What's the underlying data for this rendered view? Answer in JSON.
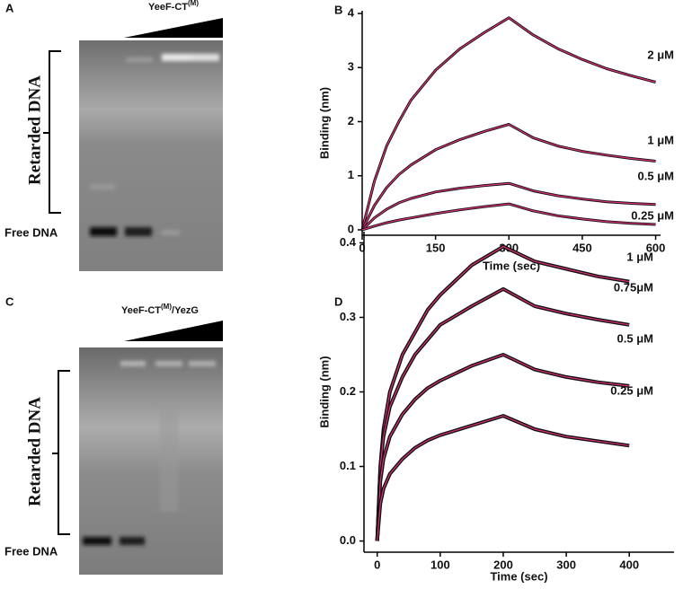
{
  "panels": {
    "A": {
      "letter": "A",
      "wedge_label": {
        "text": "YeeF-CT",
        "superscript": "(M)"
      },
      "bracket_label": "Retarded DNA",
      "band_label": "Free DNA"
    },
    "C": {
      "letter": "C",
      "wedge_label": {
        "text": "YeeF-CT",
        "superscript": "(M)",
        "suffix": "/YezG"
      },
      "bracket_label": "Retarded DNA",
      "band_label": "Free DNA"
    },
    "B": {
      "letter": "B"
    },
    "D": {
      "letter": "D"
    }
  },
  "chart_data": [
    {
      "type": "line",
      "x_label": "Time (sec)",
      "y_label": "Binding (nm)",
      "x": [
        0,
        25,
        50,
        75,
        100,
        150,
        200,
        250,
        300,
        350,
        400,
        450,
        500,
        550,
        600
      ],
      "series": [
        {
          "name": "2 μM",
          "color": "#111111",
          "values": [
            0,
            0.9,
            1.55,
            2.0,
            2.4,
            2.95,
            3.35,
            3.65,
            3.92,
            3.6,
            3.35,
            3.15,
            2.98,
            2.85,
            2.73
          ]
        },
        {
          "name": "1 μM",
          "color": "#111111",
          "values": [
            0,
            0.45,
            0.78,
            1.02,
            1.2,
            1.48,
            1.67,
            1.82,
            1.95,
            1.7,
            1.55,
            1.45,
            1.38,
            1.32,
            1.27
          ]
        },
        {
          "name": "0.5 μM",
          "color": "#111111",
          "values": [
            0,
            0.22,
            0.38,
            0.5,
            0.58,
            0.7,
            0.77,
            0.82,
            0.86,
            0.72,
            0.63,
            0.57,
            0.52,
            0.49,
            0.47
          ]
        },
        {
          "name": "0.25 μM",
          "color": "#111111",
          "values": [
            0,
            0.07,
            0.13,
            0.18,
            0.22,
            0.3,
            0.37,
            0.43,
            0.48,
            0.35,
            0.26,
            0.2,
            0.15,
            0.12,
            0.1
          ]
        }
      ],
      "fit_color": "#e0307a",
      "xlim": [
        0,
        610
      ],
      "ylim": [
        -0.1,
        4.05
      ],
      "xticks": [
        0,
        150,
        300,
        450,
        600
      ],
      "yticks": [
        0,
        1,
        2,
        3,
        4
      ]
    },
    {
      "type": "line",
      "x_label": "Time (sec)",
      "y_label": "Binding (nm)",
      "x": [
        0,
        5,
        10,
        20,
        40,
        60,
        80,
        100,
        150,
        200,
        250,
        300,
        350,
        400
      ],
      "series": [
        {
          "name": "1 μM",
          "color": "#111111",
          "values": [
            0,
            0.1,
            0.15,
            0.2,
            0.25,
            0.28,
            0.31,
            0.33,
            0.37,
            0.395,
            0.375,
            0.365,
            0.355,
            0.348
          ]
        },
        {
          "name": "0.75μM",
          "color": "#111111",
          "values": [
            0,
            0.1,
            0.14,
            0.18,
            0.22,
            0.25,
            0.27,
            0.29,
            0.315,
            0.338,
            0.315,
            0.305,
            0.297,
            0.29
          ]
        },
        {
          "name": "0.5 μM",
          "color": "#111111",
          "values": [
            0,
            0.08,
            0.11,
            0.14,
            0.17,
            0.19,
            0.205,
            0.215,
            0.235,
            0.25,
            0.23,
            0.22,
            0.213,
            0.208
          ]
        },
        {
          "name": "0.25 μM",
          "color": "#111111",
          "values": [
            0,
            0.05,
            0.07,
            0.09,
            0.11,
            0.125,
            0.135,
            0.142,
            0.155,
            0.168,
            0.15,
            0.14,
            0.134,
            0.128
          ]
        }
      ],
      "fit_color": "#e0307a",
      "xlim": [
        -21,
        471
      ],
      "ylim": [
        -0.015,
        0.415
      ],
      "xticks": [
        0,
        100,
        200,
        300,
        400
      ],
      "yticks": [
        {
          "value": 0,
          "label": "0.0"
        },
        0.1,
        0.2,
        0.3,
        0.4
      ]
    }
  ]
}
